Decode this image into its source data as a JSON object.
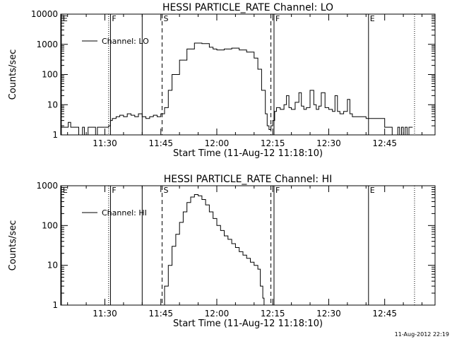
{
  "timestamp": "11-Aug-2012 22:19",
  "chart_data": [
    {
      "type": "line",
      "title": "HESSI PARTICLE_RATE Channel: LO",
      "xlabel": "Start Time (11-Aug-12 11:18:10)",
      "ylabel": "Counts/sec",
      "yscale": "log",
      "ylim": [
        1,
        10000
      ],
      "xlim": [
        "11:18:10",
        "12:58:30"
      ],
      "xticks": [
        "11:30",
        "11:45",
        "12:00",
        "12:15",
        "12:30",
        "12:45"
      ],
      "yticks": [
        "1",
        "10",
        "100",
        "1000",
        "10000"
      ],
      "legend": {
        "label": "Channel: LO",
        "position": "top-left"
      },
      "markers": [
        {
          "label": "E",
          "time": "11:18:20",
          "style": "solid"
        },
        {
          "label": "",
          "time": "11:31:00",
          "style": "dotted"
        },
        {
          "label": "F",
          "time": "11:31:30",
          "style": "solid"
        },
        {
          "label": "",
          "time": "11:40:00",
          "style": "solid"
        },
        {
          "label": "S",
          "time": "11:45:20",
          "style": "dashed"
        },
        {
          "label": "",
          "time": "12:14:30",
          "style": "dashed"
        },
        {
          "label": "F",
          "time": "12:15:20",
          "style": "solid"
        },
        {
          "label": "E",
          "time": "12:40:40",
          "style": "solid"
        },
        {
          "label": "",
          "time": "12:53:00",
          "style": "dotted"
        }
      ],
      "series": [
        {
          "name": "Channel: LO",
          "x": [
            "11:18:10",
            "11:19:30",
            "11:20:10",
            "11:20:50",
            "11:21:30",
            "11:22:30",
            "11:23:00",
            "11:23:30",
            "11:24:00",
            "11:24:30",
            "11:25:00",
            "11:25:30",
            "11:26:00",
            "11:27:00",
            "11:27:30",
            "11:28:00",
            "11:28:30",
            "11:29:00",
            "11:29:30",
            "11:30:00",
            "11:31:00",
            "11:31:30",
            "11:32:00",
            "11:33:00",
            "11:34:00",
            "11:35:00",
            "11:36:00",
            "11:37:00",
            "11:38:00",
            "11:39:00",
            "11:40:00",
            "11:41:00",
            "11:42:00",
            "11:43:00",
            "11:44:00",
            "11:45:00",
            "11:46:00",
            "11:47:00",
            "11:48:00",
            "11:50:00",
            "11:52:00",
            "11:54:00",
            "11:56:00",
            "11:58:00",
            "11:59:00",
            "12:00:00",
            "12:02:00",
            "12:04:00",
            "12:06:00",
            "12:08:00",
            "12:10:00",
            "12:11:00",
            "12:12:00",
            "12:13:00",
            "12:13:30",
            "12:14:00",
            "12:14:30",
            "12:15:00",
            "12:15:30",
            "12:16:00",
            "12:17:00",
            "12:18:00",
            "12:18:40",
            "12:19:20",
            "12:20:00",
            "12:21:00",
            "12:22:00",
            "12:22:40",
            "12:23:20",
            "12:24:00",
            "12:25:00",
            "12:26:00",
            "12:26:40",
            "12:27:20",
            "12:28:00",
            "12:29:00",
            "12:30:00",
            "12:31:00",
            "12:31:40",
            "12:32:20",
            "12:33:00",
            "12:34:00",
            "12:35:00",
            "12:35:40",
            "12:36:20",
            "12:37:00",
            "12:38:00",
            "12:40:00",
            "12:41:00",
            "12:42:00",
            "12:43:00",
            "12:44:00",
            "12:45:00",
            "12:46:00",
            "12:47:00",
            "12:48:00",
            "12:48:30",
            "12:49:00",
            "12:49:30",
            "12:50:00",
            "12:50:30",
            "12:51:00",
            "12:51:30",
            "12:52:00",
            "12:52:30"
          ],
          "y": [
            1.8,
            1.8,
            2.6,
            1.8,
            1.8,
            1.8,
            1,
            1,
            1.8,
            1,
            1,
            1.8,
            1.8,
            1.8,
            1,
            1.8,
            1.8,
            1.8,
            1.8,
            1.8,
            2,
            3,
            3.5,
            4,
            4.5,
            4,
            5,
            4.5,
            4,
            5,
            4,
            3.5,
            4,
            4.5,
            4,
            5,
            8,
            30,
            100,
            300,
            700,
            1100,
            1050,
            800,
            700,
            650,
            700,
            750,
            650,
            550,
            350,
            150,
            30,
            5,
            2,
            1.5,
            2,
            3,
            6,
            8,
            7,
            10,
            20,
            8,
            7,
            12,
            25,
            9,
            7,
            8,
            30,
            10,
            7,
            9,
            25,
            8,
            7,
            6,
            20,
            6,
            5,
            6,
            15,
            5,
            4,
            4,
            4,
            3.5,
            3.5,
            3.5,
            3.5,
            3.5,
            1.8,
            1.8,
            1,
            1,
            1.8,
            1,
            1.8,
            1,
            1.8,
            1,
            1.8,
            1.8,
            1.8
          ]
        }
      ]
    },
    {
      "type": "line",
      "title": "HESSI PARTICLE_RATE Channel: HI",
      "xlabel": "Start Time (11-Aug-12 11:18:10)",
      "ylabel": "Counts/sec",
      "yscale": "log",
      "ylim": [
        1,
        1000
      ],
      "xlim": [
        "11:18:10",
        "12:58:30"
      ],
      "xticks": [
        "11:30",
        "11:45",
        "12:00",
        "12:15",
        "12:30",
        "12:45"
      ],
      "yticks": [
        "1",
        "10",
        "100",
        "1000"
      ],
      "legend": {
        "label": "Channel: HI",
        "position": "top-left"
      },
      "markers": [
        {
          "label": "E",
          "time": "11:18:20",
          "style": "solid"
        },
        {
          "label": "",
          "time": "11:31:00",
          "style": "dotted"
        },
        {
          "label": "F",
          "time": "11:31:30",
          "style": "solid"
        },
        {
          "label": "",
          "time": "11:40:00",
          "style": "solid"
        },
        {
          "label": "S",
          "time": "11:45:20",
          "style": "dashed"
        },
        {
          "label": "",
          "time": "12:14:30",
          "style": "dashed"
        },
        {
          "label": "F",
          "time": "12:15:20",
          "style": "solid"
        },
        {
          "label": "E",
          "time": "12:40:40",
          "style": "solid"
        },
        {
          "label": "",
          "time": "12:53:00",
          "style": "dotted"
        }
      ],
      "series": [
        {
          "name": "Channel: HI",
          "x": [
            "11:45:00",
            "11:46:00",
            "11:47:00",
            "11:48:00",
            "11:49:00",
            "11:50:00",
            "11:51:00",
            "11:52:00",
            "11:53:00",
            "11:54:00",
            "11:55:00",
            "11:56:00",
            "11:57:00",
            "11:58:00",
            "11:59:00",
            "12:00:00",
            "12:01:00",
            "12:02:00",
            "12:03:00",
            "12:04:00",
            "12:05:00",
            "12:06:00",
            "12:07:00",
            "12:08:00",
            "12:09:00",
            "12:10:00",
            "12:11:00",
            "12:11:40",
            "12:12:20",
            "12:12:40"
          ],
          "y": [
            1,
            3,
            10,
            30,
            60,
            120,
            220,
            380,
            520,
            600,
            560,
            450,
            330,
            220,
            150,
            100,
            75,
            55,
            45,
            35,
            28,
            22,
            18,
            15,
            12,
            10,
            8,
            3,
            1.5,
            1
          ]
        }
      ]
    }
  ]
}
